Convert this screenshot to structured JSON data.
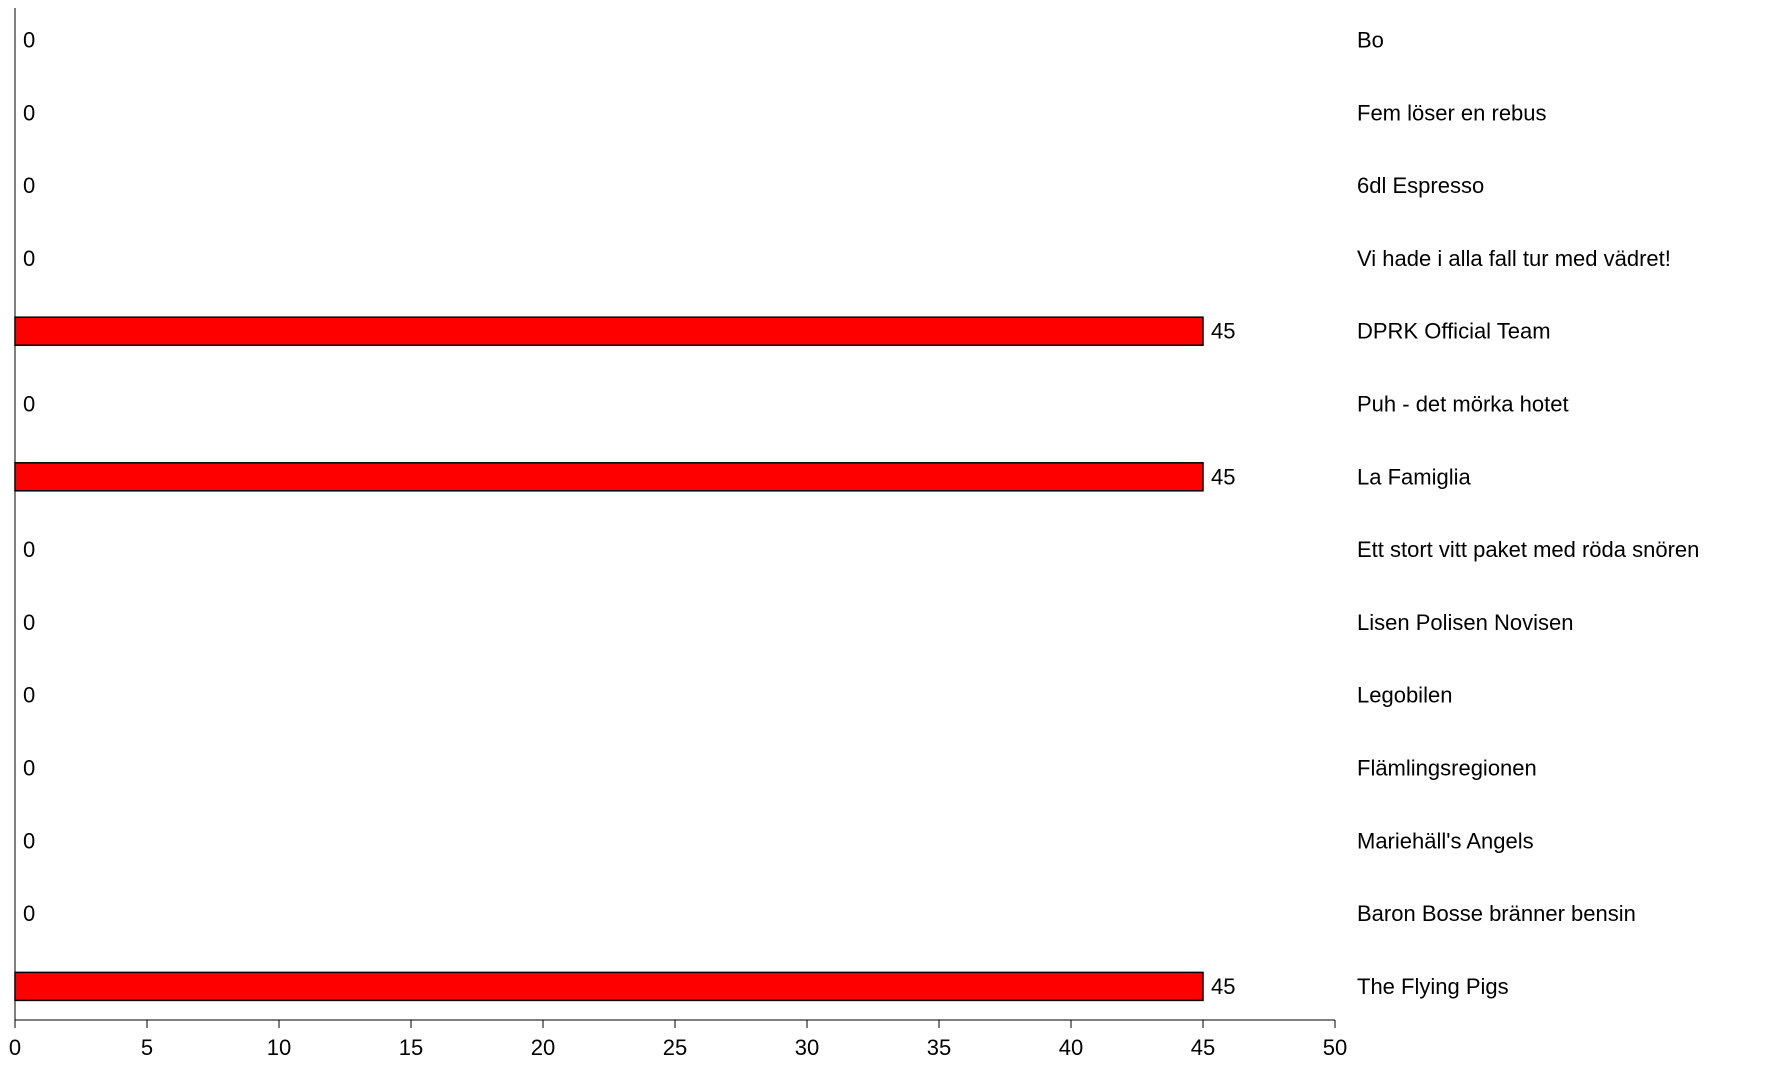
{
  "chart_data": {
    "type": "bar",
    "orientation": "horizontal",
    "categories": [
      "Bo",
      "Fem löser en rebus",
      "6dl Espresso",
      "Vi hade i alla fall tur med vädret!",
      "DPRK Official Team",
      "Puh - det mörka hotet",
      "La Famiglia",
      "Ett stort vitt paket med röda snören",
      "Lisen Polisen Novisen",
      "Legobilen",
      "Flämlingsregionen",
      "Mariehäll's Angels",
      "Baron Bosse bränner bensin",
      "The Flying Pigs"
    ],
    "values": [
      0,
      0,
      0,
      0,
      45,
      0,
      45,
      0,
      0,
      0,
      0,
      0,
      0,
      45
    ],
    "data_labels": [
      "0",
      "0",
      "0",
      "0",
      "45",
      "0",
      "45",
      "0",
      "0",
      "0",
      "0",
      "0",
      "0",
      "45"
    ],
    "xlim": [
      0,
      50
    ],
    "x_ticks": [
      "0",
      "5",
      "10",
      "15",
      "20",
      "25",
      "30",
      "35",
      "40",
      "45",
      "50"
    ],
    "title": "",
    "xlabel": "",
    "ylabel": "",
    "grid": false,
    "legend": "none",
    "category_label_position": "right",
    "colors": {
      "bar": "#ff0000",
      "bar_edge": "#000000",
      "axis": "#000000",
      "text": "#000000"
    }
  }
}
